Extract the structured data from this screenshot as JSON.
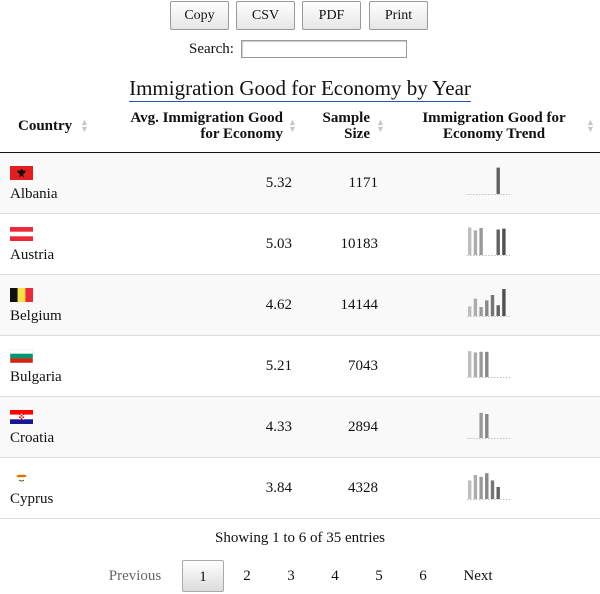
{
  "toolbar": {
    "copy": "Copy",
    "csv": "CSV",
    "pdf": "PDF",
    "print": "Print"
  },
  "search": {
    "label": "Search:",
    "value": ""
  },
  "title": "Immigration Good for Economy by Year",
  "columns": {
    "country": "Country",
    "avg_line1": "Avg. Immigration Good",
    "avg_line2": "for Economy",
    "size_line1": "Sample",
    "size_line2": "Size",
    "trend_line1": "Immigration Good for",
    "trend_line2": "Economy Trend"
  },
  "rows": [
    {
      "country": "Albania",
      "avg": "5.32",
      "size": "1171",
      "flag": {
        "kind": "albania"
      },
      "trend": [
        null,
        null,
        null,
        null,
        null,
        0.88,
        null
      ]
    },
    {
      "country": "Austria",
      "avg": "5.03",
      "size": "10183",
      "flag": {
        "kind": "austria"
      },
      "trend": [
        0.92,
        0.82,
        0.9,
        null,
        null,
        0.85,
        0.88
      ]
    },
    {
      "country": "Belgium",
      "avg": "4.62",
      "size": "14144",
      "flag": {
        "kind": "belgium"
      },
      "trend": [
        0.32,
        0.58,
        0.3,
        0.52,
        0.7,
        0.36,
        0.9
      ]
    },
    {
      "country": "Bulgaria",
      "avg": "5.21",
      "size": "7043",
      "flag": {
        "kind": "bulgaria"
      },
      "trend": [
        0.86,
        0.82,
        0.84,
        0.84,
        null,
        null,
        null
      ]
    },
    {
      "country": "Croatia",
      "avg": "4.33",
      "size": "2894",
      "flag": {
        "kind": "croatia"
      },
      "trend": [
        null,
        null,
        0.84,
        0.8,
        null,
        null,
        null
      ]
    },
    {
      "country": "Cyprus",
      "avg": "3.84",
      "size": "4328",
      "flag": {
        "kind": "cyprus"
      },
      "trend": [
        0.62,
        0.8,
        0.74,
        0.86,
        0.62,
        0.4,
        null
      ]
    }
  ],
  "info": "Showing 1 to 6 of 35 entries",
  "pagination": {
    "previous": "Previous",
    "pages": [
      "1",
      "2",
      "3",
      "4",
      "5",
      "6"
    ],
    "current": "1",
    "next": "Next"
  }
}
